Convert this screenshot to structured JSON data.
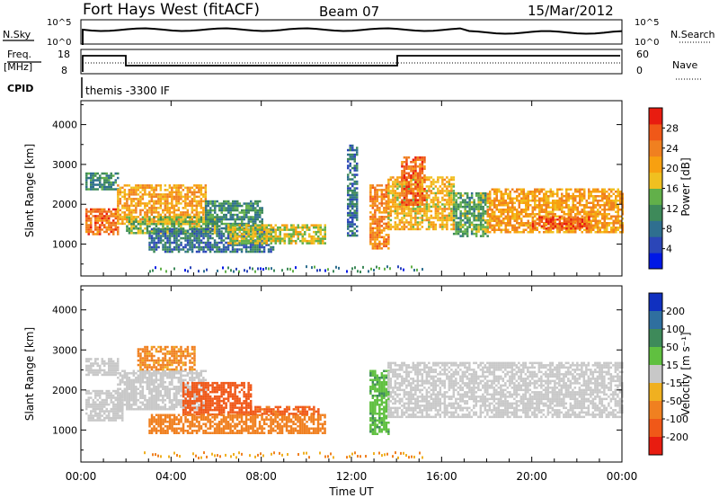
{
  "header": {
    "station": "Fort Hays West (fitACF)",
    "beam": "Beam 07",
    "date": "15/Mar/2012"
  },
  "top_panels": {
    "nsky_label": "N.Sky",
    "nsearch_label": "N.Search",
    "noise_ticks": [
      "10^5",
      "10^0"
    ],
    "freq_label": "Freq.",
    "freq_unit": "[MHz]",
    "freq_ticks": [
      "18",
      "8"
    ],
    "nave_label": "Nave",
    "nave_ticks": [
      "60",
      "0"
    ],
    "cpid_label": "CPID",
    "cpid_value": "themis -3300 IF"
  },
  "chart_data": [
    {
      "type": "heatmap",
      "name": "power",
      "ylabel": "Slant Range [km]",
      "ylim": [
        200,
        4600
      ],
      "yticks": [
        1000,
        2000,
        3000,
        4000
      ],
      "xlim": [
        0,
        24
      ],
      "colorbar_label": "Power [dB]",
      "colorbar_ticks": [
        "4",
        "8",
        "12",
        "16",
        "20",
        "24",
        "28"
      ],
      "colorbar_colors": [
        "#0018e6",
        "#2b46b8",
        "#2f6f8f",
        "#3e8a5a",
        "#62b04a",
        "#f0c020",
        "#f8a010",
        "#f08020",
        "#f05818",
        "#e81c10"
      ],
      "bands": [
        {
          "x0": 0.2,
          "x1": 1.6,
          "y0": 1250,
          "y1": 1900,
          "value": 24
        },
        {
          "x0": 0.2,
          "x1": 1.6,
          "y0": 2400,
          "y1": 2800,
          "value": 10
        },
        {
          "x0": 1.6,
          "x1": 5.5,
          "y0": 1500,
          "y1": 2500,
          "value": 20
        },
        {
          "x0": 2.0,
          "x1": 6.0,
          "y0": 1300,
          "y1": 1700,
          "value": 14
        },
        {
          "x0": 3.0,
          "x1": 8.5,
          "y0": 800,
          "y1": 1400,
          "value": 8
        },
        {
          "x0": 5.5,
          "x1": 8.0,
          "y0": 1400,
          "y1": 2100,
          "value": 10
        },
        {
          "x0": 6.5,
          "x1": 10.8,
          "y0": 1000,
          "y1": 1500,
          "value": 16
        },
        {
          "x0": 11.8,
          "x1": 12.2,
          "y0": 1200,
          "y1": 3500,
          "value": 8
        },
        {
          "x0": 12.8,
          "x1": 13.6,
          "y0": 900,
          "y1": 2500,
          "value": 22
        },
        {
          "x0": 13.6,
          "x1": 16.5,
          "y0": 1400,
          "y1": 2700,
          "value": 18
        },
        {
          "x0": 14.2,
          "x1": 15.2,
          "y0": 2000,
          "y1": 3200,
          "value": 24
        },
        {
          "x0": 16.5,
          "x1": 18.0,
          "y0": 1200,
          "y1": 2300,
          "value": 12
        },
        {
          "x0": 18.0,
          "x1": 24.0,
          "y0": 1300,
          "y1": 2400,
          "value": 20
        },
        {
          "x0": 20.0,
          "x1": 22.5,
          "y0": 1400,
          "y1": 1700,
          "value": 26
        }
      ]
    },
    {
      "type": "heatmap",
      "name": "velocity",
      "ylabel": "Slant Range [km]",
      "xlabel": "Time UT",
      "ylim": [
        200,
        4600
      ],
      "yticks": [
        1000,
        2000,
        3000,
        4000
      ],
      "xlim": [
        0,
        24
      ],
      "xticks": [
        "00:00",
        "04:00",
        "08:00",
        "12:00",
        "16:00",
        "20:00",
        "00:00"
      ],
      "colorbar_label": "Velocity [m s⁻¹]",
      "colorbar_ticks": [
        "200",
        "100",
        "50",
        "15",
        "-15",
        "-50",
        "-100",
        "-200"
      ],
      "colorbar_colors": [
        "#1030c0",
        "#2f6f9f",
        "#3e8a5a",
        "#60c040",
        "#c8c8c8",
        "#f0b020",
        "#f08020",
        "#f05818",
        "#e81c10"
      ],
      "bands": [
        {
          "x0": 0.2,
          "x1": 1.6,
          "y0": 2400,
          "y1": 2800,
          "value": 0
        },
        {
          "x0": 0.2,
          "x1": 1.8,
          "y0": 1250,
          "y1": 2000,
          "value": 0
        },
        {
          "x0": 1.6,
          "x1": 5.5,
          "y0": 1500,
          "y1": 2500,
          "value": 0
        },
        {
          "x0": 2.5,
          "x1": 5.0,
          "y0": 2500,
          "y1": 3100,
          "value": -60
        },
        {
          "x0": 4.5,
          "x1": 7.5,
          "y0": 1400,
          "y1": 2200,
          "value": -150
        },
        {
          "x0": 3.0,
          "x1": 10.8,
          "y0": 900,
          "y1": 1400,
          "value": -80
        },
        {
          "x0": 7.5,
          "x1": 10.5,
          "y0": 1400,
          "y1": 1600,
          "value": -110
        },
        {
          "x0": 12.8,
          "x1": 13.6,
          "y0": 900,
          "y1": 2500,
          "value": 40
        },
        {
          "x0": 13.6,
          "x1": 24.0,
          "y0": 1300,
          "y1": 2700,
          "value": 0
        }
      ]
    }
  ]
}
